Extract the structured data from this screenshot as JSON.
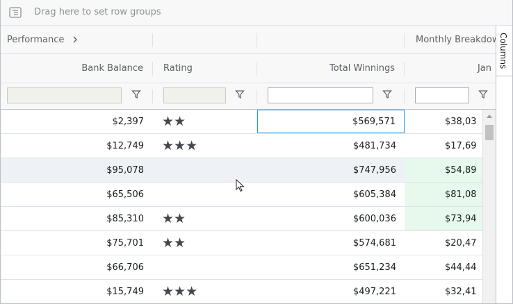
{
  "group_panel": {
    "placeholder": "Drag here to set row groups",
    "icon": "row-group-icon"
  },
  "header": {
    "group_performance": "Performance",
    "group_monthly": "Monthly Breakdown",
    "col_bank_balance": "Bank Balance",
    "col_rating": "Rating",
    "col_total_winnings": "Total Winnings",
    "col_jan": "Jan"
  },
  "sidebar": {
    "columns_tab": "Columns"
  },
  "rows": [
    {
      "bank": "$2,397",
      "rating": "★★",
      "winnings": "$569,571",
      "jan": "$38,03"
    },
    {
      "bank": "$12,749",
      "rating": "★★★",
      "winnings": "$481,734",
      "jan": "$17,69"
    },
    {
      "bank": "$95,078",
      "rating": "",
      "winnings": "$747,956",
      "jan": "$54,89"
    },
    {
      "bank": "$65,506",
      "rating": "",
      "winnings": "$605,384",
      "jan": "$81,08"
    },
    {
      "bank": "$85,310",
      "rating": "★★",
      "winnings": "$600,036",
      "jan": "$73,94"
    },
    {
      "bank": "$75,701",
      "rating": "★★",
      "winnings": "$574,681",
      "jan": "$20,47"
    },
    {
      "bank": "$66,706",
      "rating": "",
      "winnings": "$651,234",
      "jan": "$44,44"
    },
    {
      "bank": "$15,749",
      "rating": "★★★",
      "winnings": "$497,221",
      "jan": "$32,41"
    }
  ]
}
